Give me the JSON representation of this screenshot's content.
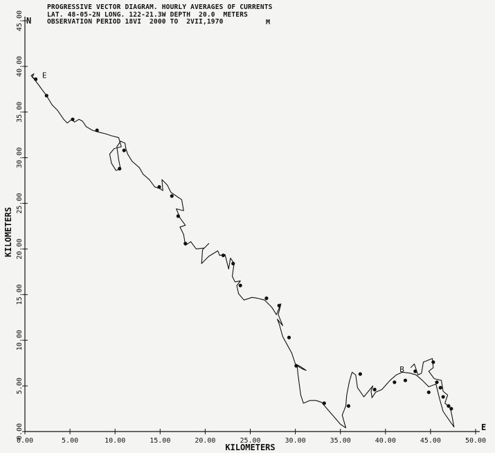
{
  "header": {
    "line1": "PROGRESSIVE VECTOR DIAGRAM. HOURLY AVERAGES OF CURRENTS",
    "line2": "LAT. 48-05-2N LONG. 122-21.3W DEPTH  20.0  METERS",
    "line3": "OBSERVATION PERIOD 18VI  2000 TO  2VII,1970",
    "mark": "M"
  },
  "chart_data": {
    "type": "line",
    "title": "PROGRESSIVE VECTOR DIAGRAM. HOURLY AVERAGES OF CURRENTS",
    "xlabel": "KILOMETERS",
    "ylabel": "KILOMETERS",
    "xlim": [
      0,
      50
    ],
    "ylim": [
      0,
      45
    ],
    "x_ticks": [
      "0.00",
      "5.00",
      "10.00",
      "15.00",
      "20.00",
      "25.00",
      "30.00",
      "35.00",
      "40.00",
      "45.00",
      "50.00"
    ],
    "y_ticks": [
      "0.00",
      "5.00",
      "10.00",
      "15.00",
      "20.00",
      "25.00",
      "30.00",
      "35.00",
      "40.00",
      "45.00"
    ],
    "axis_end_labels": {
      "north": "N",
      "east": "E"
    },
    "markers": {
      "begin": "B",
      "end": "E"
    },
    "grid": false,
    "series": [
      {
        "path": [
          [
            42.8,
            7.0
          ],
          [
            43.2,
            7.4
          ],
          [
            43.6,
            6.2
          ],
          [
            44.0,
            6.4
          ],
          [
            44.2,
            7.6
          ],
          [
            45.2,
            8.0
          ],
          [
            45.3,
            7.0
          ],
          [
            44.8,
            6.6
          ],
          [
            45.4,
            5.8
          ],
          [
            46.2,
            5.6
          ],
          [
            46.4,
            4.4
          ],
          [
            46.9,
            4.0
          ],
          [
            46.6,
            3.1
          ],
          [
            47.2,
            2.6
          ],
          [
            47.4,
            1.6
          ],
          [
            47.6,
            0.5
          ],
          [
            47.1,
            1.2
          ],
          [
            46.4,
            2.2
          ],
          [
            46.0,
            3.6
          ],
          [
            45.6,
            5.2
          ],
          [
            44.8,
            4.9
          ],
          [
            44.1,
            5.6
          ],
          [
            43.4,
            6.2
          ],
          [
            42.7,
            6.4
          ],
          [
            41.9,
            6.5
          ],
          [
            41.2,
            6.2
          ],
          [
            40.5,
            5.6
          ],
          [
            39.6,
            4.6
          ],
          [
            38.9,
            4.3
          ],
          [
            38.5,
            3.7
          ],
          [
            38.4,
            4.4
          ],
          [
            38.6,
            5.0
          ],
          [
            38.1,
            4.4
          ],
          [
            37.6,
            3.8
          ],
          [
            36.9,
            4.8
          ],
          [
            36.7,
            6.2
          ],
          [
            36.3,
            6.5
          ],
          [
            36.0,
            5.5
          ],
          [
            35.7,
            4.0
          ],
          [
            35.6,
            2.8
          ],
          [
            35.2,
            1.8
          ],
          [
            35.6,
            0.4
          ],
          [
            35.0,
            0.8
          ],
          [
            34.3,
            1.6
          ],
          [
            33.6,
            2.4
          ],
          [
            32.9,
            3.2
          ],
          [
            32.3,
            3.4
          ],
          [
            31.6,
            3.4
          ],
          [
            30.9,
            3.1
          ],
          [
            30.6,
            4.0
          ],
          [
            30.3,
            6.2
          ],
          [
            30.2,
            7.2
          ],
          [
            30.9,
            6.8
          ],
          [
            31.2,
            6.7
          ],
          [
            30.6,
            7.1
          ],
          [
            30.0,
            7.4
          ],
          [
            29.6,
            8.6
          ],
          [
            29.1,
            9.5
          ],
          [
            28.6,
            10.4
          ],
          [
            28.2,
            11.8
          ],
          [
            28.0,
            12.3
          ],
          [
            28.6,
            11.6
          ],
          [
            28.1,
            12.8
          ],
          [
            28.4,
            14.0
          ],
          [
            27.9,
            12.8
          ],
          [
            27.4,
            13.6
          ],
          [
            26.6,
            14.4
          ],
          [
            25.8,
            14.6
          ],
          [
            25.2,
            14.7
          ],
          [
            24.3,
            14.4
          ],
          [
            23.7,
            15.1
          ],
          [
            23.5,
            16.0
          ],
          [
            23.9,
            16.5
          ],
          [
            23.3,
            16.4
          ],
          [
            23.0,
            17.0
          ],
          [
            23.2,
            18.4
          ],
          [
            22.8,
            19.0
          ],
          [
            22.6,
            17.8
          ],
          [
            22.2,
            19.4
          ],
          [
            21.6,
            19.3
          ],
          [
            21.4,
            19.8
          ],
          [
            20.4,
            19.2
          ],
          [
            19.6,
            18.4
          ],
          [
            19.7,
            19.9
          ],
          [
            20.4,
            20.6
          ],
          [
            19.9,
            20.1
          ],
          [
            19.0,
            20.0
          ],
          [
            18.4,
            20.8
          ],
          [
            17.8,
            20.4
          ],
          [
            17.6,
            21.6
          ],
          [
            17.2,
            22.4
          ],
          [
            17.8,
            22.6
          ],
          [
            17.2,
            23.4
          ],
          [
            16.8,
            24.4
          ],
          [
            17.6,
            24.2
          ],
          [
            17.4,
            25.4
          ],
          [
            16.8,
            25.8
          ],
          [
            16.2,
            26.2
          ],
          [
            15.8,
            27.0
          ],
          [
            15.2,
            27.6
          ],
          [
            15.3,
            26.4
          ],
          [
            15.0,
            26.6
          ],
          [
            14.4,
            26.8
          ],
          [
            13.8,
            27.6
          ],
          [
            13.1,
            28.2
          ],
          [
            12.7,
            28.9
          ],
          [
            11.9,
            29.6
          ],
          [
            11.4,
            30.4
          ],
          [
            11.2,
            31.0
          ],
          [
            11.1,
            31.6
          ],
          [
            10.6,
            31.8
          ],
          [
            10.2,
            31.2
          ],
          [
            10.4,
            29.8
          ],
          [
            10.6,
            28.8
          ],
          [
            10.1,
            28.6
          ],
          [
            9.6,
            29.4
          ],
          [
            9.4,
            30.4
          ],
          [
            9.9,
            31.0
          ],
          [
            10.7,
            31.2
          ],
          [
            10.4,
            32.2
          ],
          [
            9.6,
            32.4
          ],
          [
            9.0,
            32.6
          ],
          [
            8.2,
            32.8
          ],
          [
            7.5,
            33.0
          ],
          [
            6.8,
            33.4
          ],
          [
            6.4,
            34.0
          ],
          [
            6.0,
            34.2
          ],
          [
            5.5,
            33.9
          ],
          [
            5.2,
            34.2
          ],
          [
            4.7,
            33.8
          ],
          [
            4.3,
            34.2
          ],
          [
            3.6,
            35.2
          ],
          [
            3.0,
            35.8
          ],
          [
            2.4,
            36.8
          ],
          [
            1.8,
            37.6
          ],
          [
            1.2,
            38.4
          ],
          [
            0.7,
            39.0
          ],
          [
            1.0,
            39.2
          ],
          [
            0.8,
            38.8
          ],
          [
            1.3,
            38.6
          ]
        ],
        "points": [
          [
            47.3,
            2.5
          ],
          [
            47.0,
            2.8
          ],
          [
            46.4,
            3.8
          ],
          [
            46.1,
            4.8
          ],
          [
            45.7,
            5.4
          ],
          [
            44.8,
            4.3
          ],
          [
            45.3,
            7.6
          ],
          [
            43.3,
            6.6
          ],
          [
            42.2,
            5.6
          ],
          [
            41.0,
            5.4
          ],
          [
            38.8,
            4.6
          ],
          [
            37.2,
            6.3
          ],
          [
            35.9,
            2.8
          ],
          [
            33.2,
            3.1
          ],
          [
            30.1,
            7.2
          ],
          [
            29.3,
            10.3
          ],
          [
            28.2,
            13.8
          ],
          [
            26.8,
            14.6
          ],
          [
            23.9,
            16.0
          ],
          [
            23.1,
            18.4
          ],
          [
            22.0,
            19.3
          ],
          [
            17.8,
            20.6
          ],
          [
            17.0,
            23.6
          ],
          [
            16.3,
            25.8
          ],
          [
            14.9,
            26.8
          ],
          [
            11.0,
            30.8
          ],
          [
            10.5,
            28.8
          ],
          [
            8.0,
            33.0
          ],
          [
            5.3,
            34.2
          ],
          [
            2.4,
            36.8
          ],
          [
            1.2,
            38.6
          ]
        ]
      }
    ]
  }
}
